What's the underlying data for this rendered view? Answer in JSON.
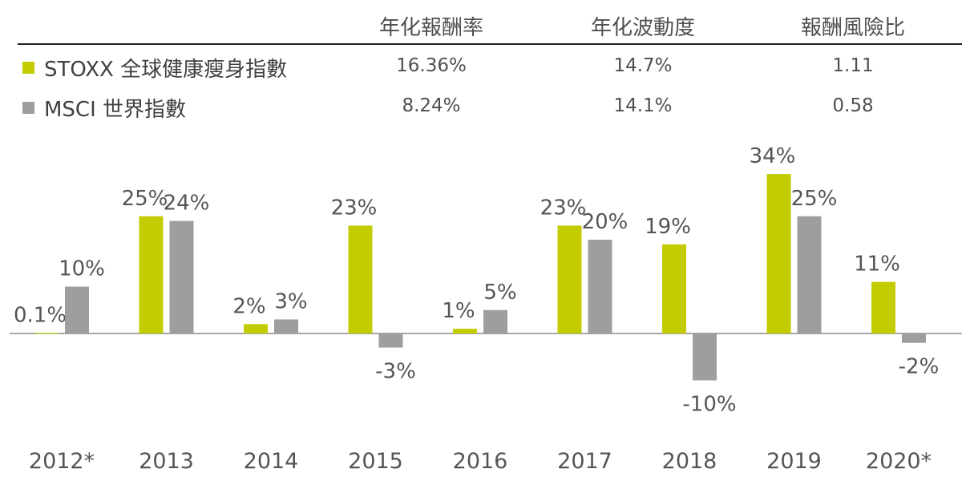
{
  "table": {
    "headers": [
      "年化報酬率",
      "年化波動度",
      "報酬風險比"
    ],
    "rows": [
      {
        "name": "STOXX 全球健康瘦身指數",
        "color": "#c3cc00",
        "values": [
          "16.36%",
          "14.7%",
          "1.11"
        ]
      },
      {
        "name": "MSCI 世界指數",
        "color": "#9e9e9e",
        "values": [
          "8.24%",
          "14.1%",
          "0.58"
        ]
      }
    ]
  },
  "chart_data": {
    "type": "bar",
    "categories": [
      "2012*",
      "2013",
      "2014",
      "2015",
      "2016",
      "2017",
      "2018",
      "2019",
      "2020*"
    ],
    "series": [
      {
        "name": "STOXX 全球健康瘦身指數",
        "color": "#c3cc00",
        "values": [
          0.1,
          25,
          2,
          23,
          1,
          23,
          19,
          34,
          11
        ],
        "labels": [
          "0.1%",
          "25%",
          "2%",
          "23%",
          "1%",
          "23%",
          "19%",
          "34%",
          "11%"
        ]
      },
      {
        "name": "MSCI 世界指數",
        "color": "#9e9e9e",
        "values": [
          10,
          24,
          3,
          -3,
          5,
          20,
          -10,
          25,
          -2
        ],
        "labels": [
          "10%",
          "24%",
          "3%",
          "-3%",
          "5%",
          "20%",
          "-10%",
          "25%",
          "-2%"
        ]
      }
    ],
    "grid": false,
    "legend": "top-left"
  }
}
